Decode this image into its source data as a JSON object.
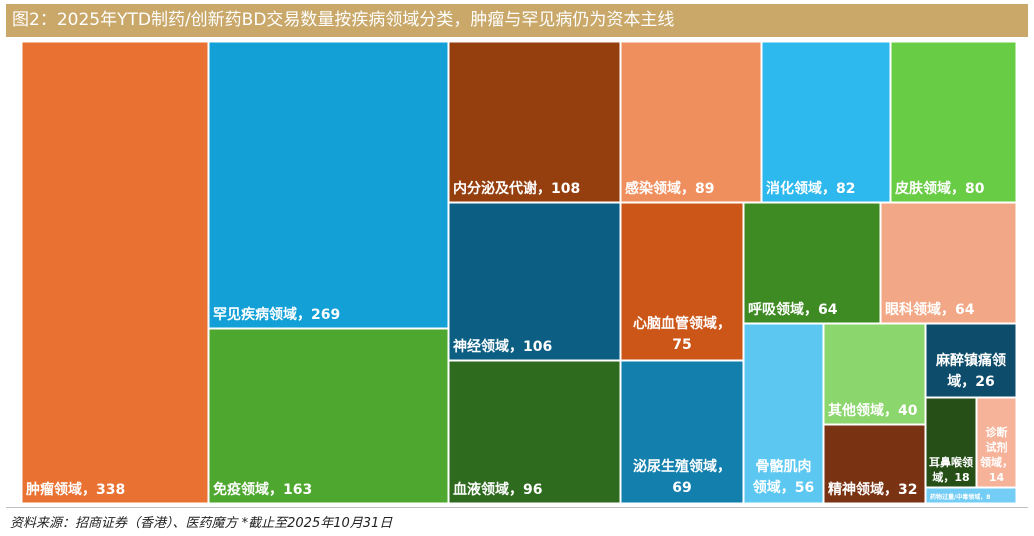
{
  "header": {
    "title": "图2：2025年YTD制药/创新药BD交易数量按疾病领域分类，肿瘤与罕见病仍为资本主线"
  },
  "footer": {
    "source": "资料来源：招商证券（香港）、医药魔方 *截止至2025年10月31日"
  },
  "chart_data": {
    "type": "treemap",
    "title": "2025年YTD制药/创新药BD交易数量按疾病领域分类，肿瘤与罕见病仍为资本主线",
    "items": [
      {
        "name": "肿瘤领域",
        "value": 338,
        "color": "#e97132",
        "label": "肿瘤领域，338"
      },
      {
        "name": "罕见疾病领域",
        "value": 269,
        "color": "#12a0d7",
        "label": "罕见疾病领域，269"
      },
      {
        "name": "免疫领域",
        "value": 163,
        "color": "#4ea72e",
        "label": "免疫领域，163"
      },
      {
        "name": "内分泌及代谢",
        "value": 108,
        "color": "#953f0e",
        "label": "内分泌及代谢，108"
      },
      {
        "name": "神经领域",
        "value": 106,
        "color": "#0c5f82",
        "label": "神经领域，106"
      },
      {
        "name": "血液领域",
        "value": 96,
        "color": "#2f6b1f",
        "label": "血液领域，96"
      },
      {
        "name": "感染领域",
        "value": 89,
        "color": "#f08f5e",
        "label": "感染领域，89"
      },
      {
        "name": "消化领域",
        "value": 82,
        "color": "#2db8ee",
        "label": "消化领域，82"
      },
      {
        "name": "皮肤领域",
        "value": 80,
        "color": "#68cc44",
        "label": "皮肤领域，80"
      },
      {
        "name": "心脑血管领域",
        "value": 75,
        "color": "#cc5518",
        "label": "心脑血管领域，75",
        "lines": [
          "心脑血管领域，",
          "75"
        ]
      },
      {
        "name": "泌尿生殖领域",
        "value": 69,
        "color": "#127fad",
        "label": "泌尿生殖领域，69",
        "lines": [
          "泌尿生殖领域，",
          "69"
        ]
      },
      {
        "name": "呼吸领域",
        "value": 64,
        "color": "#3e8b24",
        "label": "呼吸领域，64"
      },
      {
        "name": "眼科领域",
        "value": 64,
        "color": "#f2a886",
        "label": "眼科领域，64"
      },
      {
        "name": "骨骼肌肉领域",
        "value": 56,
        "color": "#5cc8f2",
        "label": "骨骼肌肉领域，56",
        "lines": [
          "骨骼肌肉",
          "领域，56"
        ]
      },
      {
        "name": "其他领域",
        "value": 40,
        "color": "#8cd66e",
        "label": "其他领域，40"
      },
      {
        "name": "精神领域",
        "value": 32,
        "color": "#7a3312",
        "label": "精神领域，32"
      },
      {
        "name": "麻醉镇痛领域",
        "value": 26,
        "color": "#0d4c6a",
        "label": "麻醉镇痛领域，26",
        "lines": [
          "麻醉镇痛领",
          "域，26"
        ]
      },
      {
        "name": "耳鼻喉领域",
        "value": 18,
        "color": "#254f17",
        "label": "耳鼻喉领域，18",
        "lines": [
          "耳鼻喉领",
          "域，18"
        ]
      },
      {
        "name": "诊断试剂领域",
        "value": 14,
        "color": "#f6b39a",
        "label": "诊断试剂领域，14",
        "lines": [
          "诊断",
          "试剂",
          "领域，",
          "14"
        ]
      },
      {
        "name": "药物过量/中毒领域",
        "value": 8,
        "color": "#73cdf5",
        "label": "药物过量/中毒领域，8"
      }
    ]
  }
}
